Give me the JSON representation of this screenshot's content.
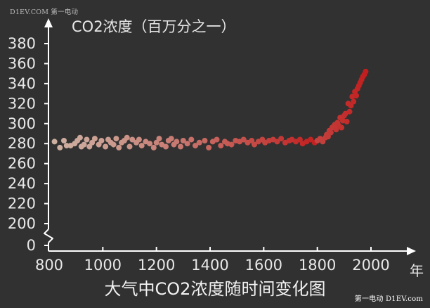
{
  "watermark_top": "D1EV.COM 第一电动",
  "watermark_bottom": "第一电动 D1EV.com",
  "chart_data": {
    "type": "scatter",
    "title": "大气中CO2浓度随时间变化图",
    "ylabel": "CO2浓度（百万分之一）",
    "xlabel": "年",
    "xlim": [
      800,
      2000
    ],
    "ylim": [
      0,
      380
    ],
    "y_axis_break": true,
    "x_ticks": [
      800,
      1000,
      1200,
      1400,
      1600,
      1800,
      2000
    ],
    "y_ticks": [
      0,
      200,
      220,
      240,
      260,
      280,
      300,
      320,
      340,
      360,
      380
    ],
    "color_start": "#cdb0a2",
    "color_end": "#c11f1f",
    "grid": false,
    "points": [
      {
        "x": 820,
        "y": 282
      },
      {
        "x": 840,
        "y": 276
      },
      {
        "x": 855,
        "y": 283
      },
      {
        "x": 865,
        "y": 278
      },
      {
        "x": 880,
        "y": 278
      },
      {
        "x": 895,
        "y": 280
      },
      {
        "x": 905,
        "y": 283
      },
      {
        "x": 915,
        "y": 286
      },
      {
        "x": 920,
        "y": 277
      },
      {
        "x": 930,
        "y": 279
      },
      {
        "x": 940,
        "y": 284
      },
      {
        "x": 950,
        "y": 277
      },
      {
        "x": 960,
        "y": 281
      },
      {
        "x": 970,
        "y": 285
      },
      {
        "x": 985,
        "y": 279
      },
      {
        "x": 995,
        "y": 283
      },
      {
        "x": 1010,
        "y": 277
      },
      {
        "x": 1020,
        "y": 284
      },
      {
        "x": 1030,
        "y": 281
      },
      {
        "x": 1040,
        "y": 279
      },
      {
        "x": 1050,
        "y": 285
      },
      {
        "x": 1060,
        "y": 276
      },
      {
        "x": 1070,
        "y": 281
      },
      {
        "x": 1080,
        "y": 283
      },
      {
        "x": 1090,
        "y": 286
      },
      {
        "x": 1100,
        "y": 277
      },
      {
        "x": 1110,
        "y": 284
      },
      {
        "x": 1125,
        "y": 281
      },
      {
        "x": 1135,
        "y": 284
      },
      {
        "x": 1145,
        "y": 278
      },
      {
        "x": 1160,
        "y": 282
      },
      {
        "x": 1175,
        "y": 280
      },
      {
        "x": 1190,
        "y": 276
      },
      {
        "x": 1200,
        "y": 281
      },
      {
        "x": 1210,
        "y": 285
      },
      {
        "x": 1220,
        "y": 279
      },
      {
        "x": 1235,
        "y": 277
      },
      {
        "x": 1245,
        "y": 283
      },
      {
        "x": 1255,
        "y": 285
      },
      {
        "x": 1265,
        "y": 279
      },
      {
        "x": 1275,
        "y": 282
      },
      {
        "x": 1290,
        "y": 277
      },
      {
        "x": 1300,
        "y": 283
      },
      {
        "x": 1315,
        "y": 280
      },
      {
        "x": 1330,
        "y": 284
      },
      {
        "x": 1345,
        "y": 278
      },
      {
        "x": 1360,
        "y": 281
      },
      {
        "x": 1380,
        "y": 283
      },
      {
        "x": 1395,
        "y": 276
      },
      {
        "x": 1410,
        "y": 282
      },
      {
        "x": 1425,
        "y": 284
      },
      {
        "x": 1440,
        "y": 278
      },
      {
        "x": 1455,
        "y": 282
      },
      {
        "x": 1465,
        "y": 280
      },
      {
        "x": 1480,
        "y": 279
      },
      {
        "x": 1495,
        "y": 283
      },
      {
        "x": 1510,
        "y": 282
      },
      {
        "x": 1525,
        "y": 284
      },
      {
        "x": 1540,
        "y": 281
      },
      {
        "x": 1555,
        "y": 283
      },
      {
        "x": 1565,
        "y": 279
      },
      {
        "x": 1580,
        "y": 282
      },
      {
        "x": 1595,
        "y": 284
      },
      {
        "x": 1605,
        "y": 281
      },
      {
        "x": 1620,
        "y": 283
      },
      {
        "x": 1635,
        "y": 284
      },
      {
        "x": 1650,
        "y": 282
      },
      {
        "x": 1665,
        "y": 285
      },
      {
        "x": 1680,
        "y": 281
      },
      {
        "x": 1695,
        "y": 283
      },
      {
        "x": 1705,
        "y": 284
      },
      {
        "x": 1720,
        "y": 282
      },
      {
        "x": 1735,
        "y": 284
      },
      {
        "x": 1745,
        "y": 280
      },
      {
        "x": 1760,
        "y": 282
      },
      {
        "x": 1775,
        "y": 284
      },
      {
        "x": 1790,
        "y": 281
      },
      {
        "x": 1800,
        "y": 283
      },
      {
        "x": 1810,
        "y": 285
      },
      {
        "x": 1820,
        "y": 282
      },
      {
        "x": 1830,
        "y": 286
      },
      {
        "x": 1835,
        "y": 289
      },
      {
        "x": 1840,
        "y": 287
      },
      {
        "x": 1845,
        "y": 293
      },
      {
        "x": 1850,
        "y": 291
      },
      {
        "x": 1855,
        "y": 296
      },
      {
        "x": 1860,
        "y": 297
      },
      {
        "x": 1865,
        "y": 299
      },
      {
        "x": 1870,
        "y": 294
      },
      {
        "x": 1875,
        "y": 301
      },
      {
        "x": 1880,
        "y": 298
      },
      {
        "x": 1885,
        "y": 306
      },
      {
        "x": 1890,
        "y": 296
      },
      {
        "x": 1895,
        "y": 303
      },
      {
        "x": 1900,
        "y": 308
      },
      {
        "x": 1905,
        "y": 310
      },
      {
        "x": 1910,
        "y": 302
      },
      {
        "x": 1915,
        "y": 320
      },
      {
        "x": 1920,
        "y": 312
      },
      {
        "x": 1925,
        "y": 318
      },
      {
        "x": 1930,
        "y": 327
      },
      {
        "x": 1935,
        "y": 322
      },
      {
        "x": 1940,
        "y": 332
      },
      {
        "x": 1945,
        "y": 328
      },
      {
        "x": 1950,
        "y": 335
      },
      {
        "x": 1955,
        "y": 338
      },
      {
        "x": 1960,
        "y": 341
      },
      {
        "x": 1965,
        "y": 344
      },
      {
        "x": 1970,
        "y": 347
      },
      {
        "x": 1975,
        "y": 349
      },
      {
        "x": 1980,
        "y": 352
      }
    ]
  }
}
